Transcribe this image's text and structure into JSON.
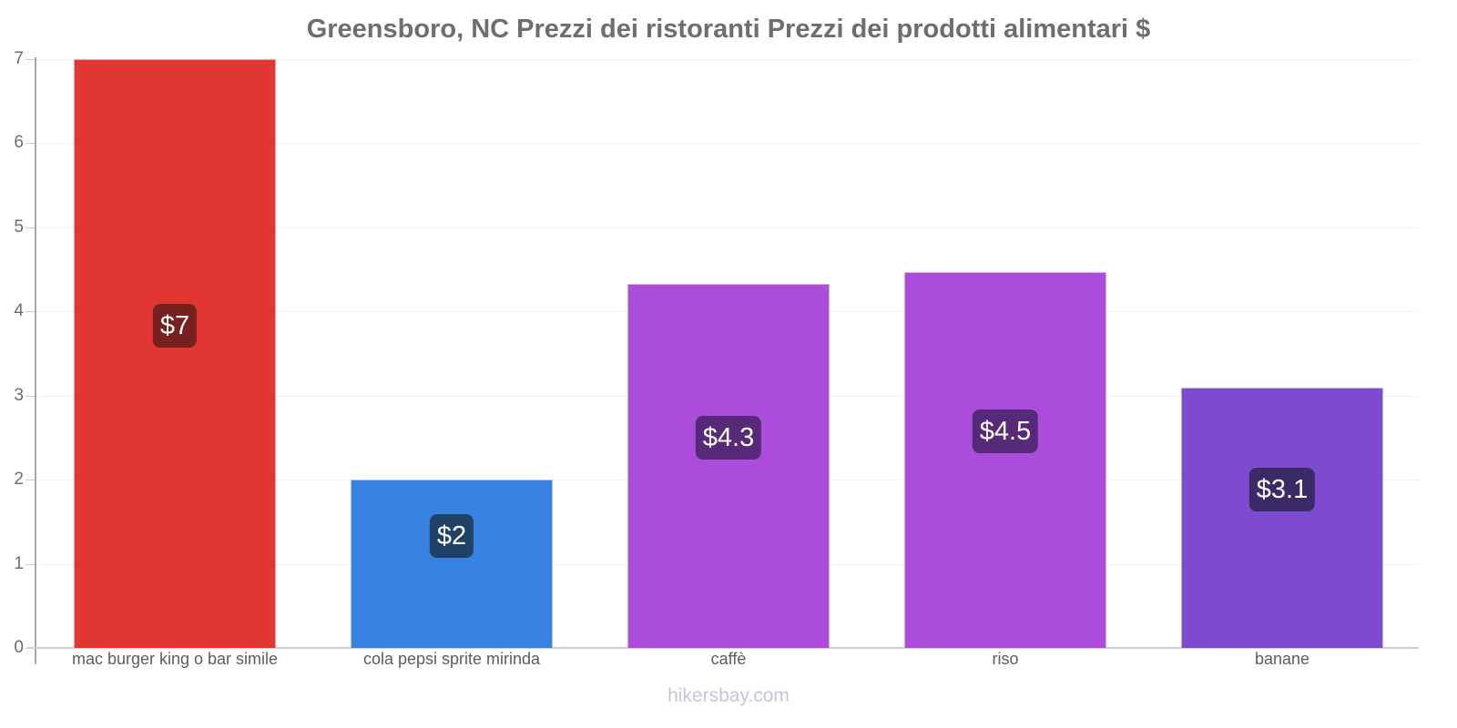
{
  "chart_data": {
    "type": "bar",
    "title": "Greensboro, NC Prezzi dei ristoranti Prezzi dei prodotti alimentari $",
    "categories": [
      "mac burger king o bar simile",
      "cola pepsi sprite mirinda",
      "caffè",
      "riso",
      "banane"
    ],
    "values": [
      7,
      2,
      4.33,
      4.47,
      3.1
    ],
    "value_labels": [
      "$7",
      "$2",
      "$4.3",
      "$4.5",
      "$3.1"
    ],
    "bar_colors": [
      "#e13632",
      "#3781e0",
      "#ac4cdb",
      "#ac4cdb",
      "#7e4bd0"
    ],
    "value_label_bg": [
      "#77211f",
      "#1f4266",
      "#562a78",
      "#562a78",
      "#3c2a66"
    ],
    "xlabel": "",
    "ylabel": "",
    "ylim": [
      0,
      7
    ],
    "yticks": [
      0,
      1,
      2,
      3,
      4,
      5,
      6,
      7
    ],
    "grid": true,
    "legend": false
  },
  "footer": {
    "text": "hikersbay.com"
  },
  "colors": {
    "title_text": "#6e6e6e",
    "axis_line": "#a9a9a9",
    "x_axis_line": "#cccccc",
    "tick": "#cccccc",
    "gridline": "#f3f3f3",
    "y_tick_text": "#6b6b6b",
    "x_cat_text": "#5d5d5d",
    "footer_text": "#c9c5d9",
    "value_text": "#ffffff"
  }
}
